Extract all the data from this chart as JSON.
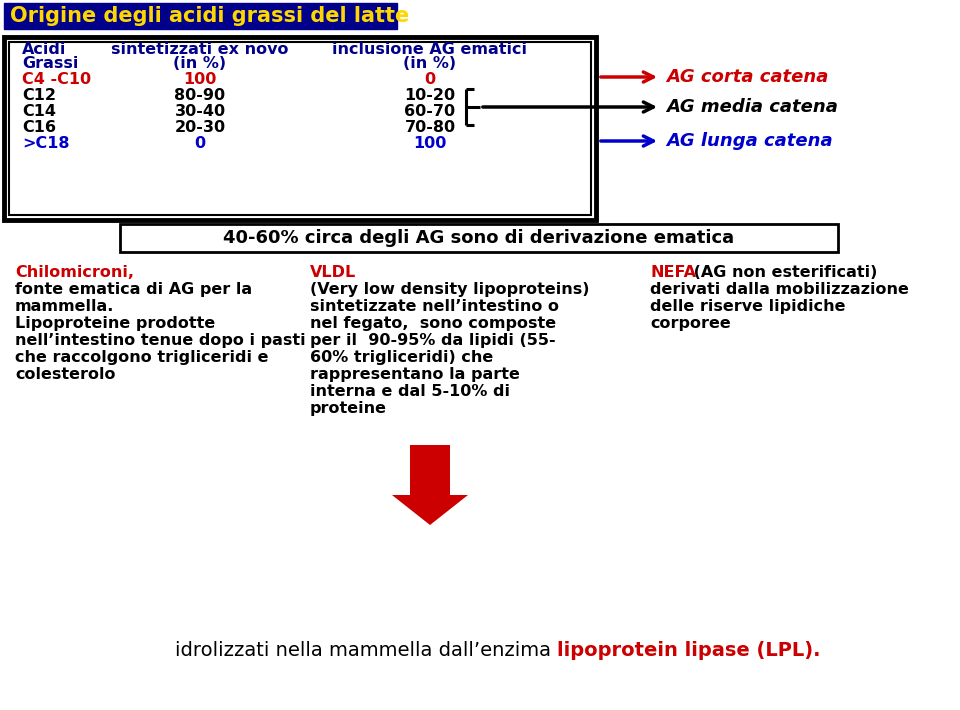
{
  "title": "Origine degli acidi grassi del latte",
  "title_bg": "#00008B",
  "title_color": "#FFD700",
  "bg_color": "#FFFFFF",
  "hdr_color": "#00008B",
  "col1_labels": [
    "C4 -C10",
    "C12",
    "C14",
    "C16",
    ">C18"
  ],
  "col2_labels": [
    "100",
    "80-90",
    "30-40",
    "20-30",
    "0"
  ],
  "col3_labels": [
    "0",
    "10-20",
    "60-70",
    "70-80",
    "100"
  ],
  "col1_colors": [
    "#CC0000",
    "#000000",
    "#000000",
    "#000000",
    "#0000CC"
  ],
  "col2_colors": [
    "#CC0000",
    "#000000",
    "#000000",
    "#000000",
    "#0000CC"
  ],
  "col3_colors": [
    "#CC0000",
    "#000000",
    "#000000",
    "#000000",
    "#0000CC"
  ],
  "arrow1_color": "#CC0000",
  "arrow2_color": "#000000",
  "arrow3_color": "#0000CC",
  "label1": "AG corta catena",
  "label1_color": "#CC0000",
  "label2": "AG media catena",
  "label2_color": "#000000",
  "label3": "AG lunga catena",
  "label3_color": "#0000CC",
  "box_text": "40-60% circa degli AG sono di derivazione ematica",
  "chilo_title": "Chilomicroni,",
  "chilo_lines": [
    "fonte ematica di AG per la",
    "mammella.",
    "Lipoproteine prodotte",
    "nell’intestino tenue dopo i pasti",
    "che raccolgono trigliceridi e",
    "colesterolo"
  ],
  "vldl_title": "VLDL",
  "vldl_lines": [
    "(Very low density lipoproteins)",
    "sintetizzate nell’intestino o",
    "nel fegato,  sono composte",
    "per il  90-95% da lipidi (55-",
    "60% trigliceridi) che",
    "rappresentano la parte",
    "interna e dal 5-10% di",
    "proteine"
  ],
  "nefa_title": "NEFA",
  "nefa_title_color": "#CC0000",
  "nefa_rest_line1": " (AG non esterificati)",
  "nefa_lines": [
    "derivati dalla mobilizzazione",
    "delle riserve lipidiche",
    "corporee"
  ],
  "bottom_plain": "idrolizzati nella mammella dall’enzima ",
  "bottom_bold": "lipoprotein lipase (LPL).",
  "red_color": "#CC0000",
  "black_color": "#000000",
  "blue_color": "#0000CC"
}
